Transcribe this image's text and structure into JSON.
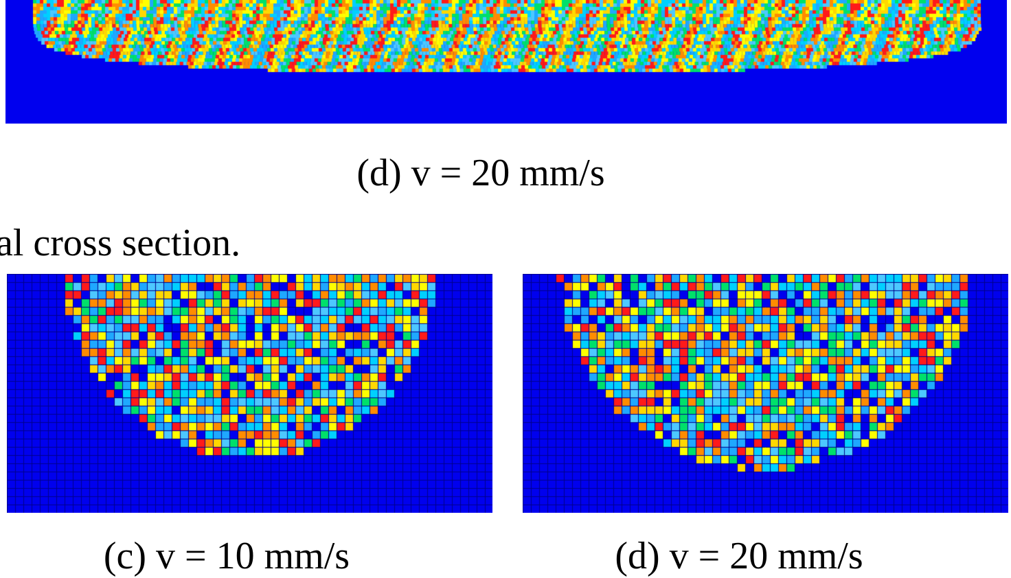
{
  "figure": {
    "top_caption": "(d) v = 20 mm/s",
    "section_text": "al cross section.",
    "caption_c": "(c) v = 10 mm/s",
    "caption_d": "(d) v = 20 mm/s"
  },
  "colors": {
    "background_blue": "#0000ee",
    "grid_line": "#00008a",
    "palette": [
      "#ff1a1a",
      "#ff8c00",
      "#ffd800",
      "#ffff00",
      "#00d0ff",
      "#1fa8ff",
      "#00e06a",
      "#4dc8ff"
    ]
  }
}
